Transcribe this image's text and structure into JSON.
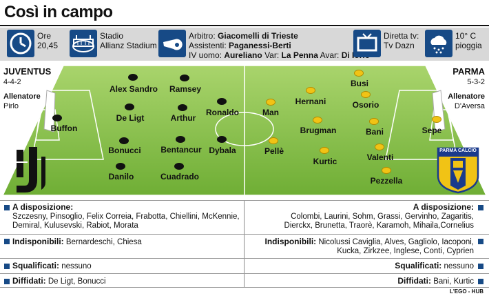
{
  "title": "Così in campo",
  "info": {
    "time_label": "Ore",
    "time_value": "20,45",
    "stadium_label": "Stadio",
    "stadium_value": "Allianz Stadium",
    "referee_label": "Arbitro:",
    "referee_value": "Giacomelli di Trieste",
    "assistants_label": "Assistenti:",
    "assistants_value": "Paganessi-Berti",
    "fourth_label": "IV uomo:",
    "fourth_value": "Aureliano",
    "var_label": "Var:",
    "var_value": "La Penna",
    "avar_label": "Avar:",
    "avar_value": "Di Iorio",
    "tv_label": "Diretta tv:",
    "tv_value": "Tv Dazn",
    "weather_temp": "10° C",
    "weather_desc": "pioggia"
  },
  "home": {
    "name": "JUVENTUS",
    "formation": "4-4-2",
    "coach_label": "Allenatore",
    "coach": "Pirlo",
    "players": [
      "Buffon",
      "Alex Sandro",
      "De Ligt",
      "Bonucci",
      "Danilo",
      "Ramsey",
      "Arthur",
      "Bentancur",
      "Cuadrado",
      "Ronaldo",
      "Dybala"
    ]
  },
  "away": {
    "name": "PARMA",
    "formation": "5-3-2",
    "coach_label": "Allenatore",
    "coach": "D'Aversa",
    "badge_text": "PARMA CALCIO",
    "players": [
      "Sepe",
      "Busi",
      "Osorio",
      "Bani",
      "Valenti",
      "Pezzella",
      "Hernani",
      "Brugman",
      "Kurtic",
      "Man",
      "Pellè"
    ]
  },
  "bench": {
    "label": "A disposizione:",
    "home_1": "Szczesny, Pinsoglio, Felix Correia, Frabotta, Chiellini, McKennie,",
    "home_2": "Demiral, Kulusevski, Rabiot, Morata",
    "away_1": "Colombi, Laurini, Sohm, Grassi, Gervinho, Zagaritis,",
    "away_2": "Dierckx, Brunetta, Traorè, Karamoh, Mihaila,Cornelius"
  },
  "unavailable": {
    "label": "Indisponibili:",
    "home": "Bernardeschi, Chiesa",
    "away_1": "Nicolussi Caviglia, Alves, Gagliolo, Iacoponi,",
    "away_2": "Kucka, Zirkzee, Inglese, Conti, Cyprien"
  },
  "suspended": {
    "label": "Squalificati:",
    "home": "nessuno",
    "away": "nessuno"
  },
  "warned": {
    "label": "Diffidati:",
    "home": "De Ligt, Bonucci",
    "away": "Bani, Kurtic"
  },
  "credit": "L'EGO - HUB",
  "colors": {
    "accent": "#174a86",
    "pitch": "#7cb342",
    "parma_yellow": "#f1c315"
  }
}
